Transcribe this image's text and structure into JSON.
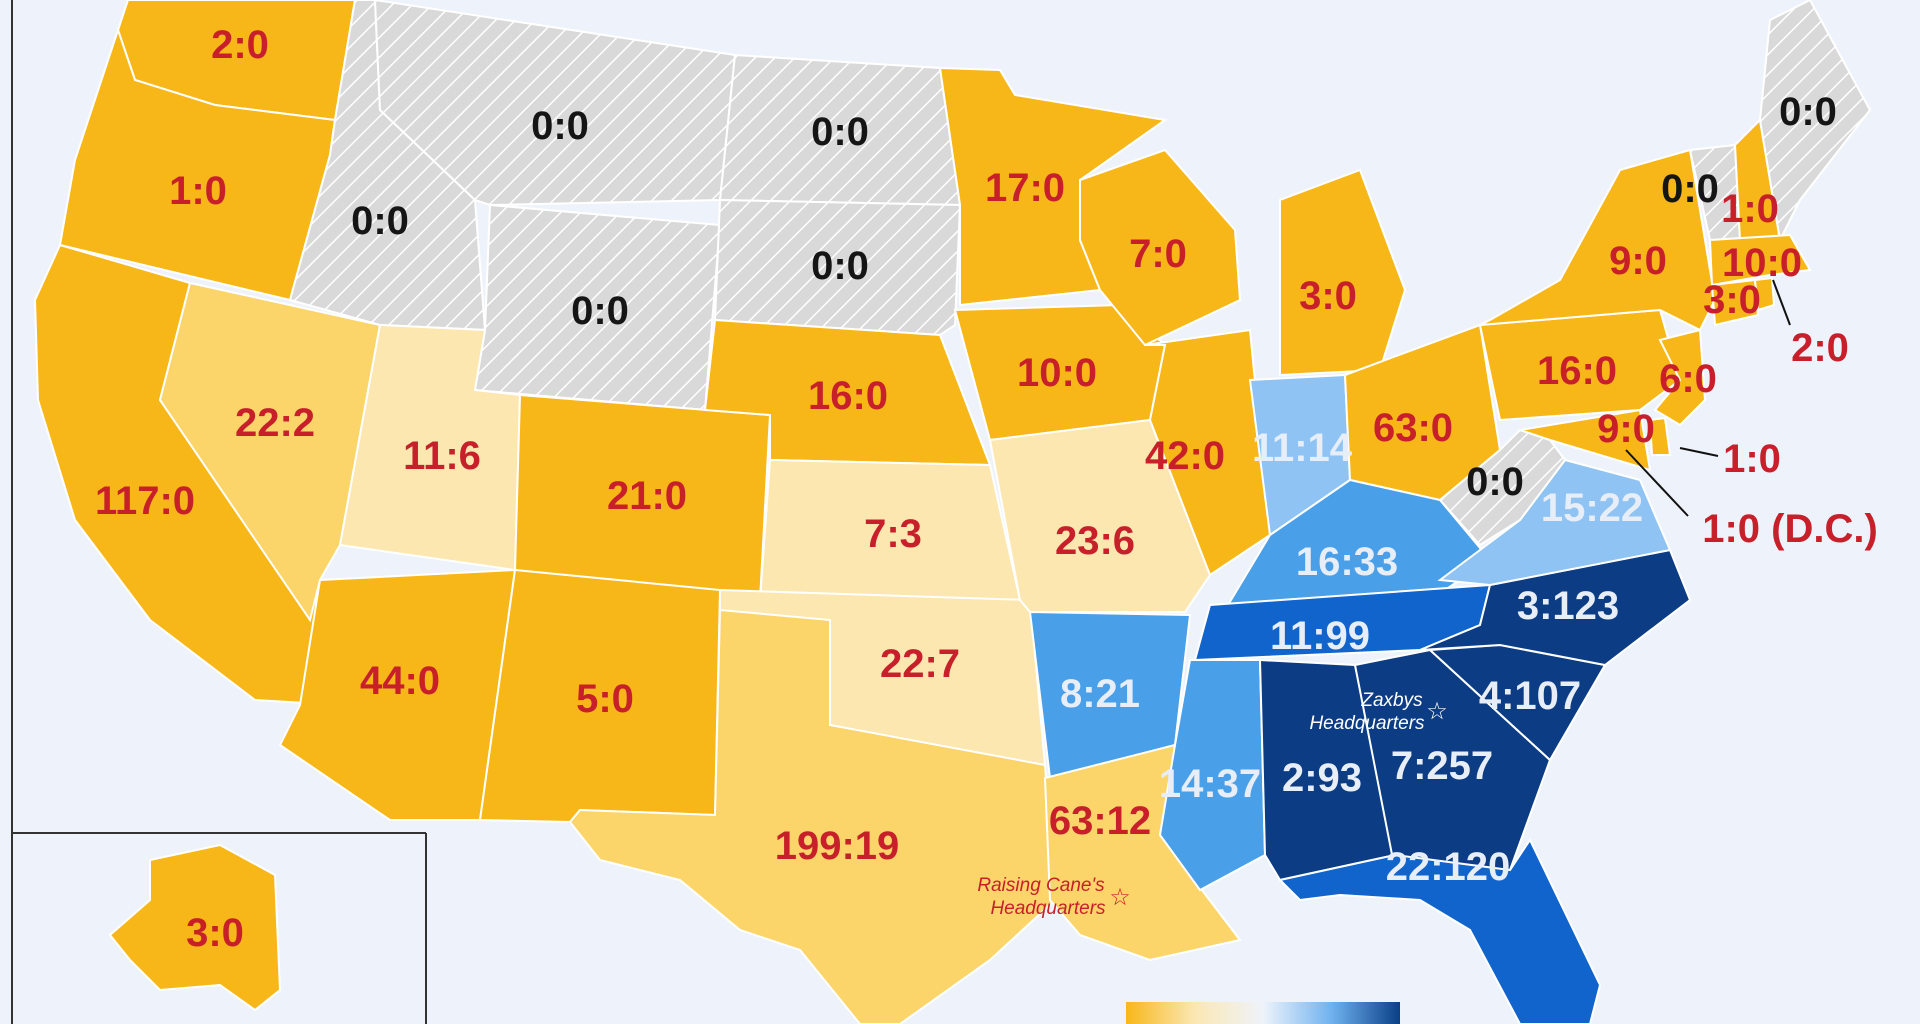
{
  "map": {
    "legend_gradient": [
      "#f8b719",
      "#fbe7b3",
      "#eef3fb",
      "#6fb2ef",
      "#0a3f86"
    ],
    "colors": {
      "orange": "#f8b719",
      "light_orange": "#fbd46a",
      "pale_orange": "#fde7b0",
      "gray": "#d9d9d9",
      "blue_light": "#8ec3f3",
      "blue_mid": "#4a9fe9",
      "blue": "#1164cc",
      "blue_dark": "#0c3d84",
      "background": "#eef3fb"
    },
    "states": [
      {
        "id": "WA",
        "label": "2:0",
        "fill": "orange"
      },
      {
        "id": "OR",
        "label": "1:0",
        "fill": "orange"
      },
      {
        "id": "CA",
        "label": "117:0",
        "fill": "orange"
      },
      {
        "id": "NV",
        "label": "22:2",
        "fill": "light_orange"
      },
      {
        "id": "ID",
        "label": "0:0",
        "fill": "gray"
      },
      {
        "id": "MT",
        "label": "0:0",
        "fill": "gray"
      },
      {
        "id": "WY",
        "label": "0:0",
        "fill": "gray"
      },
      {
        "id": "UT",
        "label": "11:6",
        "fill": "pale_orange"
      },
      {
        "id": "AZ",
        "label": "44:0",
        "fill": "orange"
      },
      {
        "id": "CO",
        "label": "21:0",
        "fill": "orange"
      },
      {
        "id": "NM",
        "label": "5:0",
        "fill": "orange"
      },
      {
        "id": "ND",
        "label": "0:0",
        "fill": "gray"
      },
      {
        "id": "SD",
        "label": "0:0",
        "fill": "gray"
      },
      {
        "id": "NE",
        "label": "16:0",
        "fill": "orange"
      },
      {
        "id": "KS",
        "label": "7:3",
        "fill": "pale_orange"
      },
      {
        "id": "OK",
        "label": "22:7",
        "fill": "pale_orange"
      },
      {
        "id": "TX",
        "label": "199:19",
        "fill": "light_orange"
      },
      {
        "id": "MN",
        "label": "17:0",
        "fill": "orange"
      },
      {
        "id": "IA",
        "label": "10:0",
        "fill": "orange"
      },
      {
        "id": "MO",
        "label": "23:6",
        "fill": "pale_orange"
      },
      {
        "id": "AR",
        "label": "8:21",
        "fill": "blue_mid"
      },
      {
        "id": "LA",
        "label": "63:12",
        "fill": "light_orange"
      },
      {
        "id": "WI",
        "label": "7:0",
        "fill": "orange"
      },
      {
        "id": "IL",
        "label": "42:0",
        "fill": "orange"
      },
      {
        "id": "MI",
        "label": "3:0",
        "fill": "orange"
      },
      {
        "id": "IN",
        "label": "11:14",
        "fill": "blue_light"
      },
      {
        "id": "OH",
        "label": "63:0",
        "fill": "orange"
      },
      {
        "id": "KY",
        "label": "16:33",
        "fill": "blue_mid"
      },
      {
        "id": "TN",
        "label": "11:99",
        "fill": "blue"
      },
      {
        "id": "MS",
        "label": "14:37",
        "fill": "blue_mid"
      },
      {
        "id": "AL",
        "label": "2:93",
        "fill": "blue_dark"
      },
      {
        "id": "GA",
        "label": "7:257",
        "fill": "blue_dark"
      },
      {
        "id": "FL",
        "label": "22:120",
        "fill": "blue"
      },
      {
        "id": "SC",
        "label": "4:107",
        "fill": "blue_dark"
      },
      {
        "id": "NC",
        "label": "3:123",
        "fill": "blue_dark"
      },
      {
        "id": "VA",
        "label": "15:22",
        "fill": "blue_light"
      },
      {
        "id": "WV",
        "label": "0:0",
        "fill": "gray"
      },
      {
        "id": "PA",
        "label": "16:0",
        "fill": "orange"
      },
      {
        "id": "NY",
        "label": "9:0",
        "fill": "orange"
      },
      {
        "id": "NJ",
        "label": "6:0",
        "fill": "orange"
      },
      {
        "id": "MD",
        "label": "9:0",
        "fill": "orange"
      },
      {
        "id": "DE",
        "label": "1:0",
        "fill": "orange"
      },
      {
        "id": "DC",
        "label": "1:0 (D.C.)",
        "fill": "orange"
      },
      {
        "id": "VT",
        "label": "0:0",
        "fill": "gray"
      },
      {
        "id": "NH",
        "label": "1:0",
        "fill": "orange"
      },
      {
        "id": "ME",
        "label": "0:0",
        "fill": "gray"
      },
      {
        "id": "MA",
        "label": "10:0",
        "fill": "orange"
      },
      {
        "id": "CT",
        "label": "3:0",
        "fill": "orange"
      },
      {
        "id": "RI",
        "label": "2:0",
        "fill": "orange"
      },
      {
        "id": "AK",
        "label": "3:0",
        "fill": "orange"
      }
    ],
    "headquarters": [
      {
        "id": "zaxbys",
        "label_line1": "Zaxbys",
        "label_line2": "Headquarters",
        "icon": "star-icon"
      },
      {
        "id": "canes",
        "label_line1": "Raising Cane's",
        "label_line2": "Headquarters",
        "icon": "star-icon"
      }
    ]
  }
}
